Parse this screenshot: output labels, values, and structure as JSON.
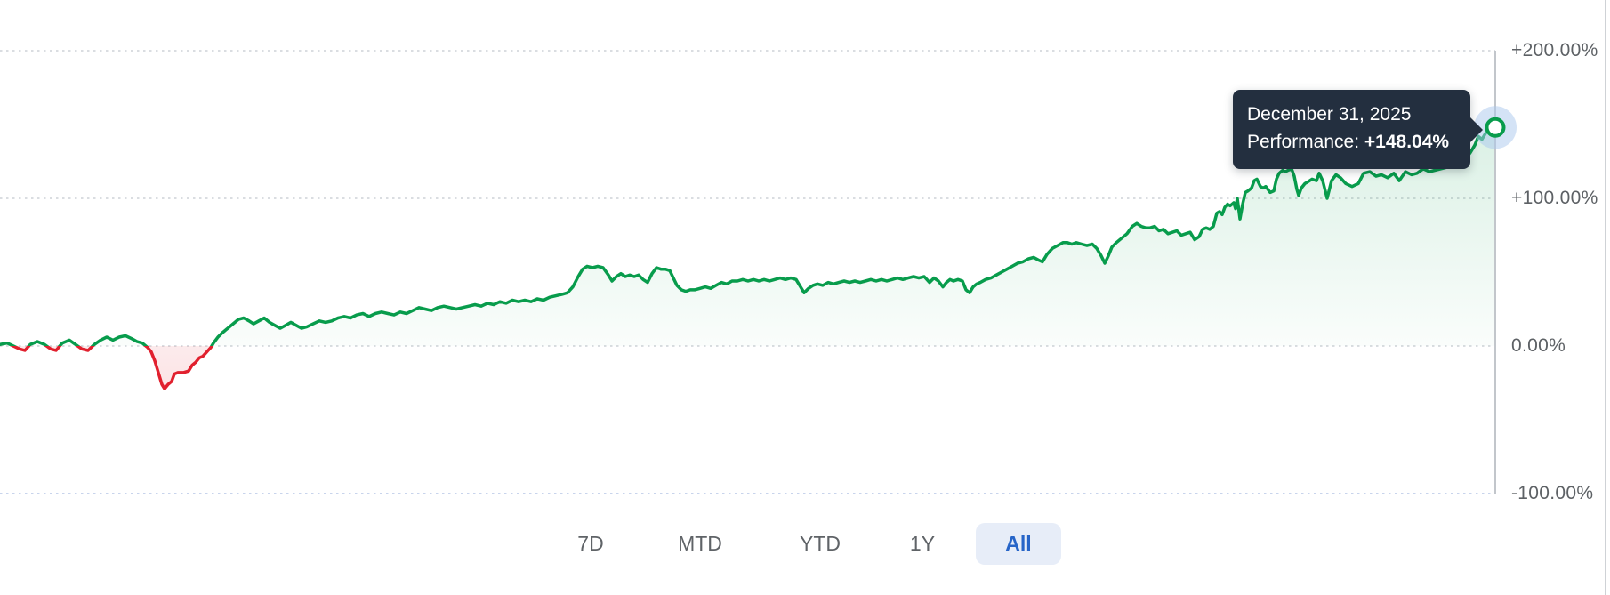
{
  "tooltip": {
    "date": "December 31, 2025",
    "label": "Performance: ",
    "value": "+148.04%"
  },
  "range_buttons": [
    {
      "label": "7D",
      "active": false
    },
    {
      "label": "MTD",
      "active": false
    },
    {
      "label": "YTD",
      "active": false
    },
    {
      "label": "1Y",
      "active": false
    },
    {
      "label": "All",
      "active": true
    }
  ],
  "colors": {
    "line_positive": "#089c4c",
    "line_negative": "#e1202e",
    "fill_positive": "#089c4c",
    "fill_negative": "#e1202e",
    "gridline": "#dadde1",
    "gridline_negative": "#c8d4ec",
    "axis_line": "#c2c6cb",
    "y_label_text": "#5d6165",
    "tooltip_bg": "#232f3f",
    "tooltip_text": "#ffffff",
    "cursor_halo": "#a9c7ee",
    "button_text": "#5f6367",
    "button_active_text": "#2765c8",
    "button_active_bg": "#e7edf8"
  },
  "chart_data": {
    "type": "area",
    "title": "",
    "xlabel": "",
    "ylabel": "",
    "xticks": [],
    "baseline": 0,
    "ylim": [
      -100,
      200
    ],
    "grid": true,
    "legend_position": "none",
    "yticks": [
      {
        "value": 200,
        "label": "+200.00%"
      },
      {
        "value": 100,
        "label": "+100.00%"
      },
      {
        "value": 0,
        "label": "0.00%"
      },
      {
        "value": -100,
        "label": "-100.00%"
      }
    ],
    "last_point": {
      "date": "December 31, 2025",
      "value": 148.04
    },
    "series": [
      {
        "name": "Performance",
        "points": [
          [
            0,
            1
          ],
          [
            8,
            2
          ],
          [
            15,
            0
          ],
          [
            22,
            -2
          ],
          [
            28,
            -3
          ],
          [
            34,
            1
          ],
          [
            42,
            3
          ],
          [
            50,
            1
          ],
          [
            57,
            -2
          ],
          [
            63,
            -3
          ],
          [
            70,
            2
          ],
          [
            78,
            4
          ],
          [
            85,
            1
          ],
          [
            92,
            -2
          ],
          [
            99,
            -3
          ],
          [
            106,
            1
          ],
          [
            113,
            4
          ],
          [
            120,
            6
          ],
          [
            127,
            4
          ],
          [
            134,
            6
          ],
          [
            141,
            7
          ],
          [
            148,
            5
          ],
          [
            154,
            3
          ],
          [
            160,
            2
          ],
          [
            166,
            -1
          ],
          [
            170,
            -4
          ],
          [
            174,
            -10
          ],
          [
            178,
            -18
          ],
          [
            182,
            -26
          ],
          [
            185,
            -29
          ],
          [
            189,
            -26
          ],
          [
            193,
            -24
          ],
          [
            196,
            -19
          ],
          [
            200,
            -18
          ],
          [
            206,
            -18
          ],
          [
            212,
            -17
          ],
          [
            216,
            -13
          ],
          [
            220,
            -11
          ],
          [
            224,
            -8
          ],
          [
            228,
            -7
          ],
          [
            231,
            -5
          ],
          [
            234,
            -3
          ],
          [
            237,
            -1
          ],
          [
            240,
            2
          ],
          [
            245,
            6
          ],
          [
            250,
            9
          ],
          [
            256,
            12
          ],
          [
            262,
            15
          ],
          [
            268,
            18
          ],
          [
            274,
            19
          ],
          [
            280,
            17
          ],
          [
            285,
            15
          ],
          [
            291,
            17
          ],
          [
            297,
            19
          ],
          [
            303,
            16
          ],
          [
            309,
            14
          ],
          [
            315,
            12
          ],
          [
            321,
            14
          ],
          [
            327,
            16
          ],
          [
            333,
            14
          ],
          [
            339,
            12
          ],
          [
            345,
            13
          ],
          [
            352,
            15
          ],
          [
            359,
            17
          ],
          [
            366,
            16
          ],
          [
            373,
            17
          ],
          [
            380,
            19
          ],
          [
            387,
            20
          ],
          [
            394,
            19
          ],
          [
            401,
            21
          ],
          [
            408,
            22
          ],
          [
            415,
            20
          ],
          [
            422,
            22
          ],
          [
            429,
            23
          ],
          [
            436,
            22
          ],
          [
            443,
            21
          ],
          [
            450,
            23
          ],
          [
            457,
            22
          ],
          [
            464,
            24
          ],
          [
            471,
            26
          ],
          [
            478,
            25
          ],
          [
            485,
            24
          ],
          [
            492,
            26
          ],
          [
            499,
            27
          ],
          [
            506,
            26
          ],
          [
            513,
            25
          ],
          [
            520,
            26
          ],
          [
            527,
            27
          ],
          [
            534,
            28
          ],
          [
            541,
            27
          ],
          [
            548,
            29
          ],
          [
            555,
            28
          ],
          [
            562,
            30
          ],
          [
            569,
            29
          ],
          [
            576,
            31
          ],
          [
            583,
            30
          ],
          [
            590,
            31
          ],
          [
            597,
            30
          ],
          [
            604,
            32
          ],
          [
            611,
            31
          ],
          [
            618,
            33
          ],
          [
            625,
            34
          ],
          [
            632,
            35
          ],
          [
            638,
            36
          ],
          [
            644,
            40
          ],
          [
            650,
            47
          ],
          [
            655,
            52
          ],
          [
            660,
            54
          ],
          [
            666,
            53
          ],
          [
            672,
            54
          ],
          [
            678,
            53
          ],
          [
            684,
            48
          ],
          [
            688,
            44
          ],
          [
            693,
            47
          ],
          [
            698,
            49
          ],
          [
            703,
            47
          ],
          [
            708,
            48
          ],
          [
            713,
            47
          ],
          [
            718,
            48
          ],
          [
            723,
            45
          ],
          [
            728,
            43
          ],
          [
            733,
            49
          ],
          [
            738,
            53
          ],
          [
            743,
            52
          ],
          [
            748,
            52
          ],
          [
            753,
            51
          ],
          [
            757,
            46
          ],
          [
            761,
            41
          ],
          [
            766,
            38
          ],
          [
            771,
            37
          ],
          [
            776,
            38
          ],
          [
            781,
            38
          ],
          [
            787,
            39
          ],
          [
            793,
            40
          ],
          [
            799,
            39
          ],
          [
            805,
            41
          ],
          [
            811,
            43
          ],
          [
            817,
            42
          ],
          [
            823,
            44
          ],
          [
            829,
            44
          ],
          [
            835,
            45
          ],
          [
            841,
            44
          ],
          [
            847,
            45
          ],
          [
            853,
            44
          ],
          [
            859,
            45
          ],
          [
            865,
            44
          ],
          [
            871,
            45
          ],
          [
            877,
            46
          ],
          [
            883,
            45
          ],
          [
            889,
            46
          ],
          [
            895,
            45
          ],
          [
            900,
            40
          ],
          [
            904,
            36
          ],
          [
            909,
            39
          ],
          [
            914,
            41
          ],
          [
            919,
            42
          ],
          [
            925,
            41
          ],
          [
            931,
            43
          ],
          [
            937,
            42
          ],
          [
            943,
            43
          ],
          [
            949,
            44
          ],
          [
            955,
            43
          ],
          [
            961,
            44
          ],
          [
            967,
            43
          ],
          [
            973,
            44
          ],
          [
            979,
            45
          ],
          [
            985,
            44
          ],
          [
            991,
            45
          ],
          [
            997,
            44
          ],
          [
            1003,
            45
          ],
          [
            1009,
            46
          ],
          [
            1015,
            45
          ],
          [
            1021,
            46
          ],
          [
            1027,
            47
          ],
          [
            1033,
            46
          ],
          [
            1039,
            47
          ],
          [
            1045,
            43
          ],
          [
            1050,
            46
          ],
          [
            1055,
            44
          ],
          [
            1060,
            40
          ],
          [
            1064,
            43
          ],
          [
            1068,
            45
          ],
          [
            1072,
            44
          ],
          [
            1077,
            45
          ],
          [
            1082,
            44
          ],
          [
            1086,
            38
          ],
          [
            1090,
            36
          ],
          [
            1094,
            40
          ],
          [
            1098,
            42
          ],
          [
            1102,
            43
          ],
          [
            1108,
            45
          ],
          [
            1114,
            46
          ],
          [
            1120,
            48
          ],
          [
            1126,
            50
          ],
          [
            1132,
            52
          ],
          [
            1138,
            54
          ],
          [
            1144,
            56
          ],
          [
            1150,
            57
          ],
          [
            1156,
            59
          ],
          [
            1162,
            60
          ],
          [
            1168,
            58
          ],
          [
            1172,
            57
          ],
          [
            1177,
            62
          ],
          [
            1183,
            66
          ],
          [
            1189,
            68
          ],
          [
            1195,
            70
          ],
          [
            1200,
            70
          ],
          [
            1205,
            69
          ],
          [
            1210,
            70
          ],
          [
            1216,
            69
          ],
          [
            1222,
            68
          ],
          [
            1228,
            69
          ],
          [
            1233,
            66
          ],
          [
            1238,
            61
          ],
          [
            1242,
            56
          ],
          [
            1246,
            61
          ],
          [
            1250,
            67
          ],
          [
            1255,
            70
          ],
          [
            1261,
            73
          ],
          [
            1267,
            76
          ],
          [
            1273,
            81
          ],
          [
            1278,
            83
          ],
          [
            1283,
            81
          ],
          [
            1288,
            80
          ],
          [
            1293,
            80
          ],
          [
            1298,
            81
          ],
          [
            1303,
            78
          ],
          [
            1308,
            79
          ],
          [
            1313,
            76
          ],
          [
            1318,
            77
          ],
          [
            1323,
            78
          ],
          [
            1328,
            75
          ],
          [
            1333,
            76
          ],
          [
            1338,
            77
          ],
          [
            1343,
            72
          ],
          [
            1348,
            74
          ],
          [
            1352,
            79
          ],
          [
            1356,
            80
          ],
          [
            1360,
            79
          ],
          [
            1364,
            81
          ],
          [
            1368,
            90
          ],
          [
            1371,
            91
          ],
          [
            1374,
            89
          ],
          [
            1377,
            94
          ],
          [
            1380,
            96
          ],
          [
            1383,
            95
          ],
          [
            1387,
            97
          ],
          [
            1389,
            93
          ],
          [
            1391,
            100
          ],
          [
            1394,
            86
          ],
          [
            1397,
            96
          ],
          [
            1400,
            104
          ],
          [
            1403,
            105
          ],
          [
            1407,
            107
          ],
          [
            1410,
            112
          ],
          [
            1413,
            113
          ],
          [
            1417,
            108
          ],
          [
            1420,
            107
          ],
          [
            1423,
            108
          ],
          [
            1428,
            104
          ],
          [
            1432,
            105
          ],
          [
            1435,
            113
          ],
          [
            1438,
            117
          ],
          [
            1442,
            119
          ],
          [
            1445,
            118
          ],
          [
            1448,
            119
          ],
          [
            1452,
            120
          ],
          [
            1455,
            115
          ],
          [
            1458,
            106
          ],
          [
            1460,
            102
          ],
          [
            1463,
            107
          ],
          [
            1467,
            110
          ],
          [
            1470,
            111
          ],
          [
            1475,
            113
          ],
          [
            1480,
            112
          ],
          [
            1483,
            117
          ],
          [
            1487,
            112
          ],
          [
            1492,
            100
          ],
          [
            1497,
            112
          ],
          [
            1502,
            116
          ],
          [
            1507,
            114
          ],
          [
            1513,
            110
          ],
          [
            1520,
            108
          ],
          [
            1527,
            110
          ],
          [
            1533,
            117
          ],
          [
            1540,
            118
          ],
          [
            1547,
            115
          ],
          [
            1553,
            116
          ],
          [
            1560,
            114
          ],
          [
            1567,
            117
          ],
          [
            1573,
            112
          ],
          [
            1580,
            118
          ],
          [
            1587,
            116
          ],
          [
            1593,
            117
          ],
          [
            1600,
            120
          ],
          [
            1607,
            118
          ],
          [
            1613,
            119
          ],
          [
            1620,
            120
          ],
          [
            1627,
            121
          ],
          [
            1634,
            123
          ],
          [
            1640,
            122
          ],
          [
            1647,
            126
          ],
          [
            1653,
            131
          ],
          [
            1658,
            136
          ],
          [
            1662,
            142
          ],
          [
            1666,
            140
          ],
          [
            1670,
            144
          ],
          [
            1673,
            146
          ],
          [
            1676,
            144
          ],
          [
            1679,
            147
          ],
          [
            1681,
            148.04
          ]
        ]
      }
    ]
  }
}
